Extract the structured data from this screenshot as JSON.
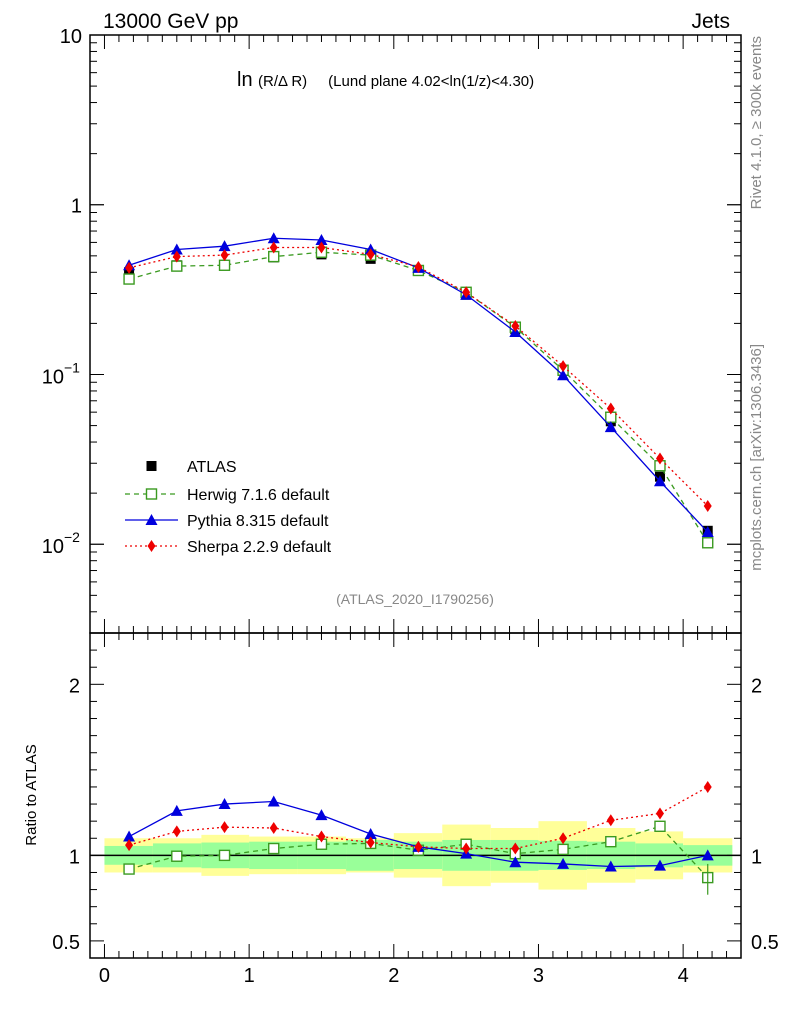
{
  "header": {
    "left": "13000 GeV pp",
    "right": "Jets"
  },
  "side": {
    "rivet": "Rivet 4.1.0, ≥ 300k events",
    "mcplots": "mcplots.cern.ch [arXiv:1306.3436]"
  },
  "chart_data": {
    "type": "line",
    "title_main": "ln",
    "title_small": "(R/Δ R)",
    "title_rest": " (Lund plane 4.02<ln(1/z)<4.30)",
    "analysis": "(ATLAS_2020_I1790256)",
    "ylabel_ratio": "Ratio to ATLAS",
    "xlim": [
      -0.1,
      4.4
    ],
    "ylim_main": [
      0.003,
      10
    ],
    "ylim_ratio": [
      0.4,
      2.3
    ],
    "x_ticks": [
      "0",
      "1",
      "2",
      "3",
      "4"
    ],
    "y_ticks_main": [
      {
        "value": 10,
        "label": "10",
        "exp": ""
      },
      {
        "value": 1,
        "label": "1",
        "exp": ""
      },
      {
        "value": 0.1,
        "label": "10",
        "exp": "−1"
      },
      {
        "value": 0.01,
        "label": "10",
        "exp": "−2"
      }
    ],
    "y_ticks_ratio": [
      {
        "value": 2,
        "label": "2"
      },
      {
        "value": 1,
        "label": "1"
      },
      {
        "value": 0.5,
        "label": "0.5"
      }
    ],
    "x": [
      0.17,
      0.5,
      0.83,
      1.17,
      1.5,
      1.84,
      2.17,
      2.5,
      2.84,
      3.17,
      3.5,
      3.84,
      4.17
    ],
    "bin_edges": [
      0.0,
      0.335,
      0.67,
      1.0,
      1.335,
      1.67,
      2.0,
      2.335,
      2.67,
      3.0,
      3.335,
      3.67,
      4.0,
      4.34
    ],
    "atlas": {
      "name": "ATLAS",
      "values": [
        0.4,
        0.44,
        0.44,
        0.49,
        0.51,
        0.48,
        0.41,
        0.295,
        0.185,
        0.105,
        0.053,
        0.025,
        0.012
      ],
      "band_inner": [
        0.055,
        0.07,
        0.075,
        0.08,
        0.08,
        0.09,
        0.08,
        0.09,
        0.09,
        0.085,
        0.08,
        0.07,
        0.06
      ],
      "band_outer": [
        0.1,
        0.1,
        0.12,
        0.11,
        0.11,
        0.1,
        0.13,
        0.18,
        0.16,
        0.2,
        0.16,
        0.14,
        0.1
      ]
    },
    "series": [
      {
        "name": "Herwig 7.1.6 default",
        "color": "#3a9a20",
        "dash": "5,4",
        "marker": "open-square",
        "values": [
          0.365,
          0.435,
          0.44,
          0.495,
          0.525,
          0.505,
          0.41,
          0.305,
          0.19,
          0.106,
          0.056,
          0.029,
          0.0102
        ],
        "ratio": [
          0.92,
          0.995,
          1.0,
          1.04,
          1.065,
          1.07,
          1.03,
          1.065,
          1.01,
          1.035,
          1.08,
          1.17,
          0.87
        ]
      },
      {
        "name": "Pythia 8.315 default",
        "color": "#0000dd",
        "dash": "",
        "marker": "triangle",
        "values": [
          0.44,
          0.545,
          0.57,
          0.635,
          0.62,
          0.545,
          0.425,
          0.295,
          0.178,
          0.099,
          0.049,
          0.0235,
          0.0118
        ],
        "ratio": [
          1.11,
          1.26,
          1.3,
          1.315,
          1.235,
          1.125,
          1.05,
          1.01,
          0.96,
          0.95,
          0.935,
          0.94,
          1.0
        ]
      },
      {
        "name": "Sherpa 2.2.9 default",
        "color": "#ee0000",
        "dash": "2,3",
        "marker": "diamond",
        "values": [
          0.425,
          0.495,
          0.505,
          0.56,
          0.56,
          0.51,
          0.43,
          0.305,
          0.193,
          0.112,
          0.063,
          0.032,
          0.0168
        ],
        "ratio": [
          1.06,
          1.14,
          1.165,
          1.16,
          1.11,
          1.075,
          1.05,
          1.04,
          1.04,
          1.1,
          1.205,
          1.245,
          1.4
        ]
      }
    ]
  }
}
